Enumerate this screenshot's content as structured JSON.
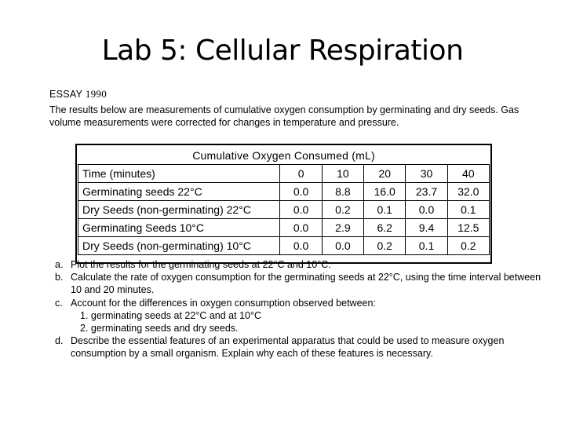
{
  "title": "Lab 5: Cellular Respiration",
  "essay": {
    "label": "ESSAY",
    "year": "1990"
  },
  "intro": "The results below are measurements of cumulative oxygen consumption by germinating and dry seeds. Gas volume measurements were corrected for changes in temperature and pressure.",
  "table": {
    "title": "Cumulative Oxygen Consumed (mL)",
    "header": {
      "label": "Time (minutes)",
      "values": [
        "0",
        "10",
        "20",
        "30",
        "40"
      ]
    },
    "rows": [
      {
        "label": "Germinating seeds 22°C",
        "values": [
          "0.0",
          "8.8",
          "16.0",
          "23.7",
          "32.0"
        ]
      },
      {
        "label": "Dry Seeds (non-germinating) 22°C",
        "values": [
          "0.0",
          "0.2",
          "0.1",
          "0.0",
          "0.1"
        ]
      },
      {
        "label": "Germinating Seeds 10°C",
        "values": [
          "0.0",
          "2.9",
          "6.2",
          "9.4",
          "12.5"
        ]
      },
      {
        "label": "Dry Seeds (non-germinating) 10°C",
        "values": [
          "0.0",
          "0.0",
          "0.2",
          "0.1",
          "0.2"
        ]
      }
    ]
  },
  "questions": [
    {
      "letter": "a.",
      "text": "Plot the results for the germinating seeds at 22°C and 10°C."
    },
    {
      "letter": "b.",
      "text": "Calculate the rate of oxygen consumption for the germinating seeds at 22°C, using the time interval between 10 and 20 minutes."
    },
    {
      "letter": "c.",
      "text": "Account for the differences in oxygen consumption observed between:"
    },
    {
      "letter": "",
      "text": "1. germinating seeds at 22°C and at 10°C"
    },
    {
      "letter": "",
      "text": "2. germinating seeds and dry seeds."
    },
    {
      "letter": "d.",
      "text": "Describe the essential features of an experimental apparatus that could be used to measure oxygen consumption by a small organism. Explain why each of these features is necessary."
    }
  ]
}
